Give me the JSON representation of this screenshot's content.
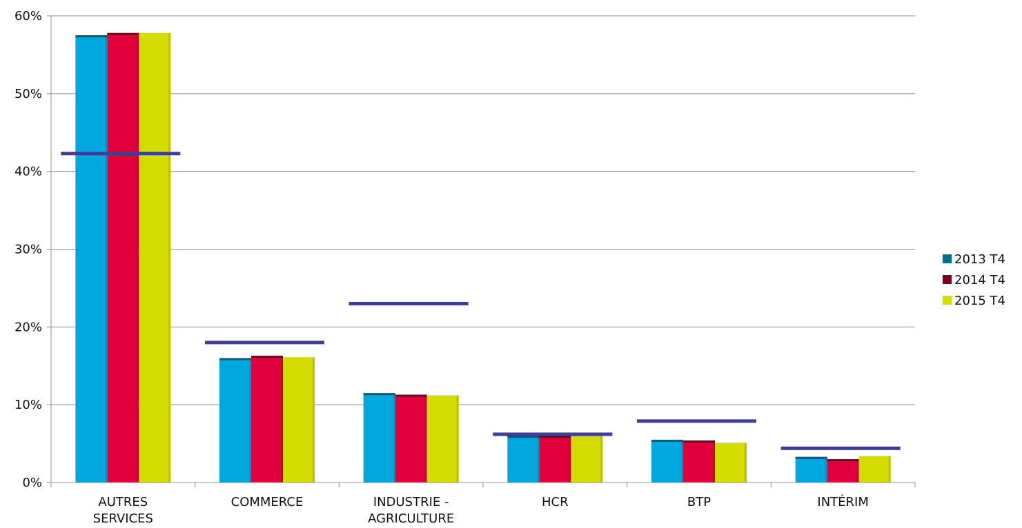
{
  "chart_data": {
    "type": "bar",
    "title": "",
    "xlabel": "",
    "ylabel": "",
    "ylim": [
      0,
      60
    ],
    "y_ticks": [
      "0%",
      "10%",
      "20%",
      "30%",
      "40%",
      "50%",
      "60%"
    ],
    "grid": "horizontal",
    "legend_position": "right",
    "categories": [
      [
        "AUTRES",
        "SERVICES"
      ],
      [
        "COMMERCE"
      ],
      [
        "INDUSTRIE -",
        "AGRICULTURE"
      ],
      [
        "HCR"
      ],
      [
        "BTP"
      ],
      [
        "INTÉRIM"
      ]
    ],
    "series": [
      {
        "name": "2013 T4",
        "values": [
          57.5,
          16.0,
          11.5,
          6.0,
          5.5,
          3.3
        ],
        "color": "#00A8E0",
        "legend_color": "#006D8F",
        "top_color": "#005F7E"
      },
      {
        "name": "2014 T4",
        "values": [
          57.8,
          16.3,
          11.3,
          6.0,
          5.4,
          3.0
        ],
        "color": "#E0003C",
        "legend_color": "#7A0020",
        "top_color": "#7A0020"
      },
      {
        "name": "2015 T4",
        "values": [
          57.8,
          16.1,
          11.2,
          6.0,
          5.1,
          3.4
        ],
        "color": "#D2DC00",
        "legend_color": "#D2DC00",
        "top_color": "#D2DC00"
      }
    ],
    "reference_lines": {
      "values": [
        42.3,
        18.0,
        23.0,
        6.2,
        7.9,
        4.4
      ],
      "color": "#3D3D99"
    }
  }
}
